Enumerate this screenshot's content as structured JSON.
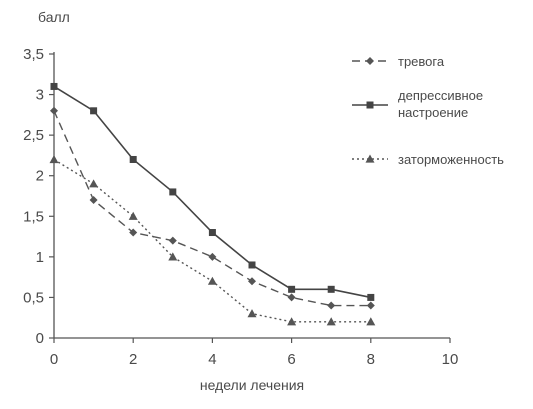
{
  "chart_data": {
    "type": "line",
    "title": "",
    "xlabel": "недели лечения",
    "ylabel": "балл",
    "xlim": [
      0,
      10
    ],
    "ylim": [
      0,
      3.5
    ],
    "x_ticks": [
      0,
      2,
      4,
      6,
      8,
      10
    ],
    "x_tick_labels": [
      "0",
      "2",
      "4",
      "6",
      "8",
      "10"
    ],
    "y_ticks": [
      0,
      0.5,
      1,
      1.5,
      2,
      2.5,
      3,
      3.5
    ],
    "y_tick_labels": [
      "0",
      "0,5",
      "1",
      "1,5",
      "2",
      "2,5",
      "3",
      "3,5"
    ],
    "grid": false,
    "legend_position": "top-right",
    "series": [
      {
        "name": "тревога",
        "color": "#555555",
        "line_style": "dashed",
        "marker": "diamond",
        "x": [
          0,
          1,
          2,
          3,
          4,
          5,
          6,
          7,
          8
        ],
        "y": [
          2.8,
          1.7,
          1.3,
          1.2,
          1.0,
          0.7,
          0.5,
          0.4,
          0.4
        ]
      },
      {
        "name": "депрессивное настроение",
        "name_lines": [
          "депрессивное",
          "настроение"
        ],
        "color": "#444444",
        "line_style": "solid",
        "marker": "square",
        "x": [
          0,
          1,
          2,
          3,
          4,
          5,
          6,
          7,
          8
        ],
        "y": [
          3.1,
          2.8,
          2.2,
          1.8,
          1.3,
          0.9,
          0.6,
          0.6,
          0.5
        ]
      },
      {
        "name": "заторможенность",
        "color": "#555555",
        "line_style": "dotted",
        "marker": "triangle",
        "x": [
          0,
          1,
          2,
          3,
          4,
          5,
          6,
          7,
          8
        ],
        "y": [
          2.2,
          1.9,
          1.5,
          1.0,
          0.7,
          0.3,
          0.2,
          0.2,
          0.2
        ]
      }
    ]
  }
}
